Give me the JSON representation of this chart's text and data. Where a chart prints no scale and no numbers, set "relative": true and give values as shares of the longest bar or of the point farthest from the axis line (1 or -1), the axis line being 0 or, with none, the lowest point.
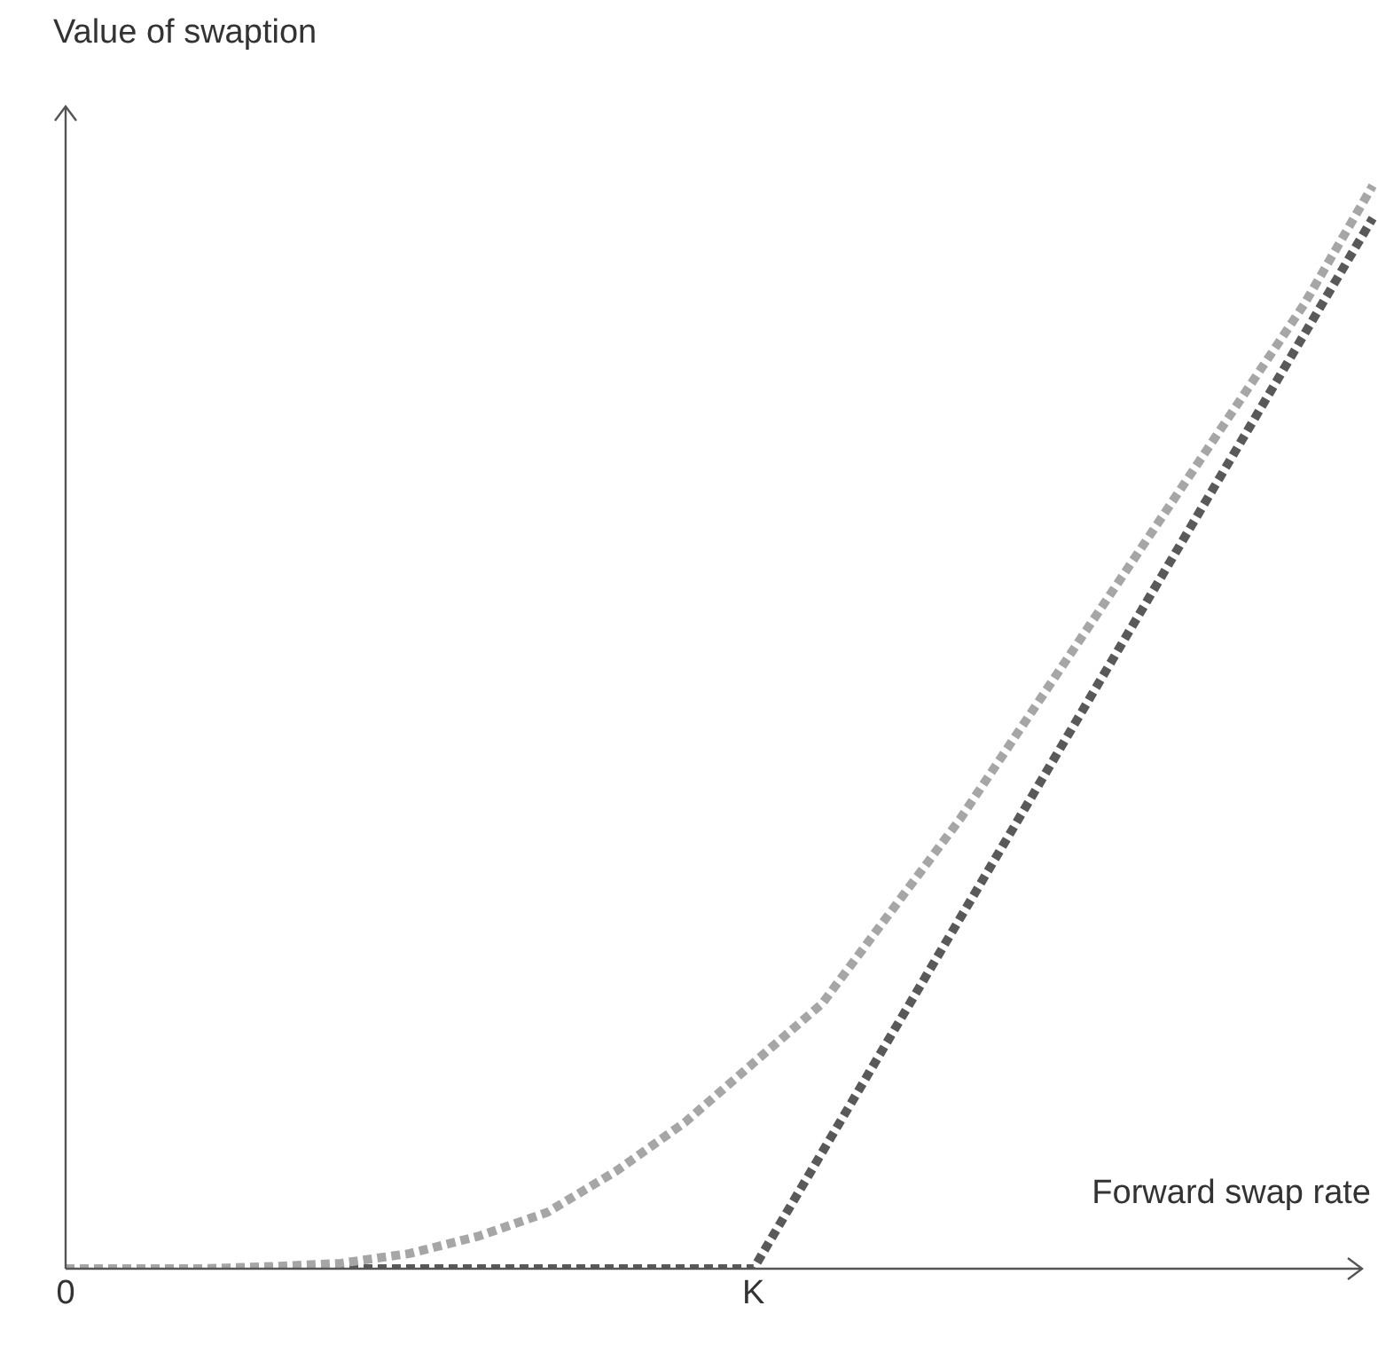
{
  "chart_data": {
    "type": "line",
    "xlabel": "Forward swap rate",
    "ylabel": "Value of swaption",
    "relative": true,
    "categories": [
      "0",
      null,
      null,
      null,
      null,
      null,
      null,
      null,
      null,
      null,
      "K",
      null,
      null,
      null,
      null,
      null,
      null,
      null,
      null,
      null
    ],
    "series": [
      {
        "color": "#a6a6a6",
        "values": [
          0,
          0,
          0,
          0.002,
          0.005,
          0.014,
          0.03,
          0.052,
          0.09,
          0.135,
          0.19,
          0.245,
          0.33,
          0.415,
          0.51,
          0.605,
          0.7,
          0.795,
          0.89,
          1
        ]
      },
      {
        "color": "#595959",
        "values": [
          0,
          null,
          null,
          null,
          null,
          null,
          null,
          null,
          null,
          null,
          0,
          null,
          null,
          null,
          null,
          null,
          null,
          null,
          null,
          0.97
        ]
      }
    ],
    "line_style": "dotted",
    "marker": "none",
    "legend": false,
    "grid": false
  }
}
